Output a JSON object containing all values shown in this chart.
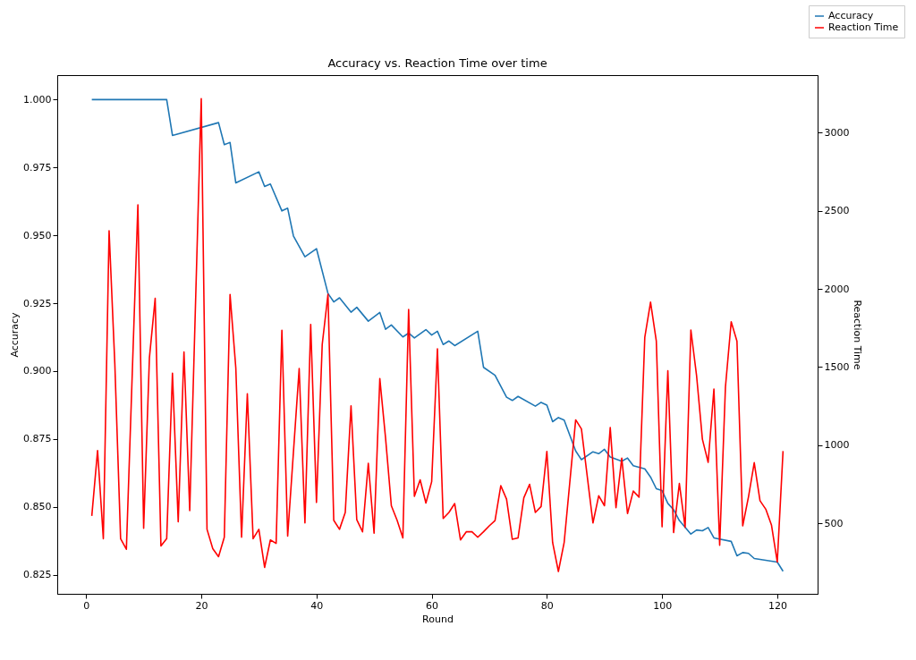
{
  "chart_data": {
    "type": "line",
    "title": "Accuracy vs. Reaction Time over time",
    "xlabel": "Round",
    "ylabel": "Accuracy",
    "y2label": "Reaction Time",
    "xlim": [
      -5,
      127
    ],
    "xticks": [
      0,
      20,
      40,
      60,
      80,
      100,
      120
    ],
    "ylim": [
      0.818,
      1.009
    ],
    "yticks": [
      0.825,
      {
        "value": 0.85,
        "label": "0.850"
      },
      0.875,
      {
        "value": 0.9,
        "label": "0.900"
      },
      0.925,
      {
        "value": 0.95,
        "label": "0.950"
      },
      0.975,
      {
        "value": 1.0,
        "label": "1.000"
      }
    ],
    "y2lim": [
      48,
      3369
    ],
    "y2ticks": [
      500,
      1000,
      1500,
      2000,
      2500,
      3000
    ],
    "grid": false,
    "legend": "top right",
    "marker": "none",
    "line_style": "solid",
    "series": [
      {
        "name": "Accuracy",
        "color": "#1f77b4",
        "x": [
          1,
          14,
          15,
          23,
          24,
          25,
          26,
          30,
          31,
          32,
          34,
          35,
          36,
          38,
          40,
          42,
          43,
          44,
          46,
          47,
          49,
          51,
          52,
          53,
          55,
          56,
          57,
          59,
          60,
          61,
          62,
          63,
          64,
          68,
          69,
          71,
          73,
          74,
          75,
          78,
          79,
          80,
          81,
          82,
          83,
          85,
          86,
          88,
          89,
          90,
          91,
          93,
          94,
          95,
          97,
          98,
          99,
          100,
          101,
          102,
          103,
          105,
          106,
          107,
          108,
          109,
          112,
          113,
          114,
          115,
          116,
          120,
          121
        ],
        "values": [
          1.0,
          1.0,
          0.9868,
          0.9915,
          0.9834,
          0.9842,
          0.9693,
          0.9734,
          0.968,
          0.9689,
          0.959,
          0.96,
          0.9498,
          0.9421,
          0.9451,
          0.9286,
          0.9255,
          0.927,
          0.9217,
          0.9235,
          0.9184,
          0.9216,
          0.9154,
          0.917,
          0.9126,
          0.914,
          0.9122,
          0.9153,
          0.9133,
          0.9147,
          0.9098,
          0.9111,
          0.9094,
          0.9147,
          0.9014,
          0.8985,
          0.8904,
          0.8892,
          0.8907,
          0.8871,
          0.8885,
          0.8875,
          0.8814,
          0.8829,
          0.882,
          0.8706,
          0.8674,
          0.8703,
          0.8696,
          0.8712,
          0.8684,
          0.8668,
          0.868,
          0.8652,
          0.864,
          0.861,
          0.8567,
          0.856,
          0.8513,
          0.849,
          0.845,
          0.84,
          0.8415,
          0.8412,
          0.8424,
          0.8386,
          0.8373,
          0.832,
          0.8332,
          0.8329,
          0.831,
          0.8297,
          0.8263
        ]
      },
      {
        "name": "Reaction Time",
        "color": "#ff0000",
        "axis": "y2",
        "x": [
          1,
          2,
          3,
          4,
          5,
          6,
          7,
          9,
          10,
          11,
          12,
          13,
          14,
          15,
          16,
          17,
          18,
          20,
          21,
          22,
          23,
          24,
          25,
          26,
          27,
          28,
          29,
          30,
          31,
          32,
          33,
          34,
          35,
          37,
          38,
          39,
          40,
          41,
          42,
          43,
          44,
          45,
          46,
          47,
          48,
          49,
          50,
          51,
          52,
          53,
          54,
          55,
          56,
          57,
          58,
          59,
          60,
          61,
          62,
          63,
          64,
          65,
          66,
          67,
          68,
          69,
          70,
          71,
          72,
          73,
          74,
          75,
          76,
          77,
          78,
          79,
          80,
          81,
          82,
          83,
          85,
          86,
          88,
          89,
          90,
          91,
          92,
          93,
          94,
          95,
          96,
          97,
          98,
          99,
          100,
          101,
          102,
          103,
          104,
          105,
          106,
          107,
          108,
          109,
          110,
          111,
          112,
          113,
          114,
          115,
          116,
          117,
          118,
          119,
          120,
          121
        ],
        "values": [
          547,
          965,
          401,
          2373,
          1516,
          401,
          333,
          2538,
          467,
          1559,
          1940,
          354,
          401,
          1460,
          509,
          1597,
          581,
          3219,
          461,
          337,
          286,
          410,
          1964,
          1494,
          410,
          1329,
          401,
          461,
          217,
          393,
          371,
          1735,
          417,
          1490,
          502,
          1773,
          633,
          1644,
          1966,
          519,
          461,
          569,
          1252,
          522,
          445,
          884,
          436,
          1426,
          1044,
          612,
          519,
          406,
          1869,
          672,
          778,
          629,
          766,
          1617,
          530,
          569,
          626,
          393,
          445,
          445,
          410,
          445,
          483,
          517,
          740,
          654,
          397,
          406,
          663,
          749,
          569,
          607,
          959,
          376,
          191,
          376,
          1162,
          1104,
          502,
          676,
          612,
          1113,
          599,
          916,
          562,
          706,
          667,
          1691,
          1916,
          1666,
          477,
          1477,
          440,
          755,
          474,
          1737,
          1441,
          1038,
          890,
          1359,
          359,
          1372,
          1790,
          1666,
          483,
          669,
          888,
          644,
          590,
          487,
          252,
          962
        ]
      }
    ]
  }
}
